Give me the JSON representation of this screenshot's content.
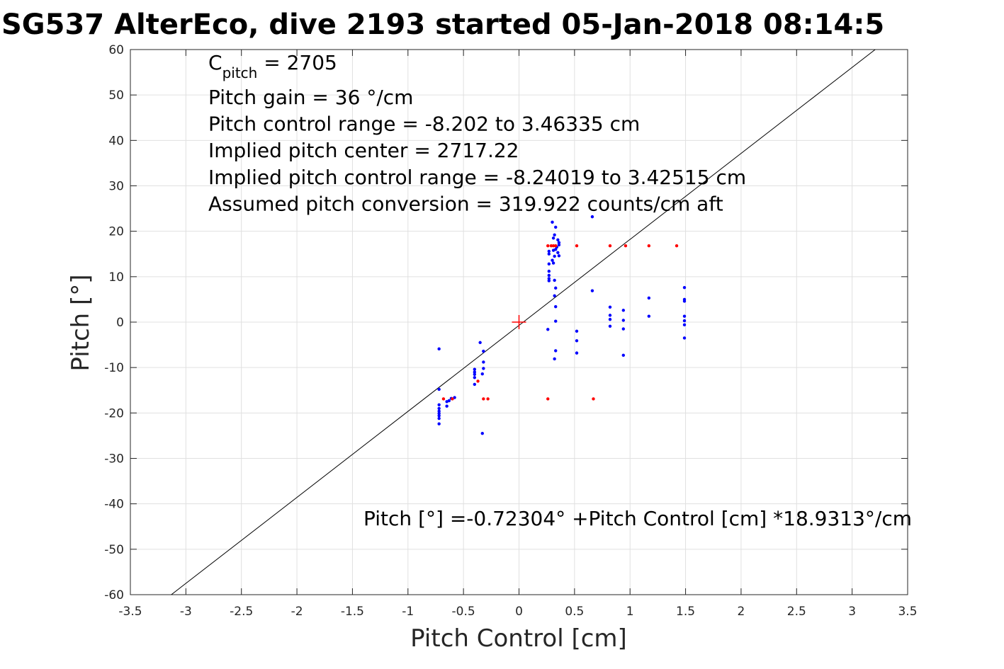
{
  "title": "SG537 AlterEco, dive 2193 started 05-Jan-2018 08:14:5",
  "colors": {
    "blue": "#0000ff",
    "red": "#ff0000",
    "fit_line": "#000000",
    "grid": "#e0e0e0"
  },
  "annotations": {
    "c_pitch_label": "C",
    "c_pitch_sub": "pitch",
    "c_pitch_value": " = 2705",
    "lines": [
      "Pitch gain = 36 °/cm",
      "Pitch control range = -8.202 to 3.46335 cm",
      "Implied pitch center = 2717.22",
      "Implied pitch control range = -8.24019 to 3.42515 cm",
      "Assumed pitch conversion = 319.922 counts/cm aft"
    ],
    "equation": "Pitch [°] =-0.72304° +Pitch Control [cm] *18.9313°/cm"
  },
  "chart_data": {
    "type": "scatter",
    "xlabel": "Pitch Control [cm]",
    "ylabel": "Pitch [°]",
    "xlim": [
      -3.5,
      3.5
    ],
    "ylim": [
      -60,
      60
    ],
    "xticks": [
      -3.5,
      -3,
      -2.5,
      -2,
      -1.5,
      -1,
      -0.5,
      0,
      0.5,
      1,
      1.5,
      2,
      2.5,
      3,
      3.5
    ],
    "xtick_labels": [
      "-3.5",
      "-3",
      "-2.5",
      "-2",
      "-1.5",
      "-1",
      "-0.5",
      "0",
      "0.5",
      "1",
      "1.5",
      "2",
      "2.5",
      "3",
      "3.5"
    ],
    "yticks": [
      -60,
      -50,
      -40,
      -30,
      -20,
      -10,
      0,
      10,
      20,
      30,
      40,
      50,
      60
    ],
    "ytick_labels": [
      "-60",
      "-50",
      "-40",
      "-30",
      "-20",
      "-10",
      "0",
      "10",
      "20",
      "30",
      "40",
      "50",
      "60"
    ],
    "grid": true,
    "fit": {
      "intercept": -0.72304,
      "slope": 18.9313
    },
    "center_marker": {
      "x": 0,
      "y": 0
    },
    "series": [
      {
        "color": "blue",
        "points": [
          [
            -0.72,
            -5.9
          ],
          [
            -0.72,
            -14.8
          ],
          [
            -0.72,
            -18.2
          ],
          [
            -0.72,
            -19.0
          ],
          [
            -0.72,
            -19.6
          ],
          [
            -0.72,
            -20.1
          ],
          [
            -0.72,
            -20.6
          ],
          [
            -0.72,
            -21.2
          ],
          [
            -0.72,
            -22.4
          ],
          [
            -0.65,
            -17.5
          ],
          [
            -0.65,
            -18.5
          ],
          [
            -0.63,
            -17.3
          ],
          [
            -0.61,
            -16.8
          ],
          [
            -0.58,
            -16.6
          ],
          [
            -0.4,
            -10.4
          ],
          [
            -0.4,
            -11.0
          ],
          [
            -0.4,
            -11.5
          ],
          [
            -0.4,
            -12.2
          ],
          [
            -0.4,
            -13.7
          ],
          [
            -0.35,
            -4.5
          ],
          [
            -0.32,
            -6.4
          ],
          [
            -0.32,
            -8.8
          ],
          [
            -0.32,
            -10.2
          ],
          [
            -0.33,
            -11.4
          ],
          [
            -0.33,
            -24.5
          ],
          [
            0.3,
            22.0
          ],
          [
            0.33,
            20.9
          ],
          [
            0.32,
            19.2
          ],
          [
            0.31,
            18.5
          ],
          [
            0.35,
            18.1
          ],
          [
            0.36,
            17.5
          ],
          [
            0.36,
            17.0
          ],
          [
            0.34,
            16.5
          ],
          [
            0.33,
            16.0
          ],
          [
            0.31,
            15.8
          ],
          [
            0.35,
            15.3
          ],
          [
            0.27,
            15.6
          ],
          [
            0.27,
            15.0
          ],
          [
            0.32,
            14.5
          ],
          [
            0.36,
            14.6
          ],
          [
            0.3,
            13.6
          ],
          [
            0.31,
            13.0
          ],
          [
            0.27,
            12.8
          ],
          [
            0.27,
            11.2
          ],
          [
            0.27,
            10.3
          ],
          [
            0.27,
            9.6
          ],
          [
            0.27,
            9.1
          ],
          [
            0.32,
            9.2
          ],
          [
            0.33,
            7.5
          ],
          [
            0.32,
            5.8
          ],
          [
            0.33,
            3.4
          ],
          [
            0.33,
            0.2
          ],
          [
            0.26,
            -1.6
          ],
          [
            0.33,
            -6.3
          ],
          [
            0.32,
            -8.1
          ],
          [
            0.52,
            -2.0
          ],
          [
            0.52,
            -4.1
          ],
          [
            0.52,
            -6.8
          ],
          [
            0.66,
            23.2
          ],
          [
            0.66,
            6.9
          ],
          [
            0.82,
            3.3
          ],
          [
            0.82,
            1.5
          ],
          [
            0.82,
            0.6
          ],
          [
            0.82,
            -0.9
          ],
          [
            0.94,
            2.6
          ],
          [
            0.94,
            0.4
          ],
          [
            0.94,
            -1.5
          ],
          [
            0.94,
            -7.3
          ],
          [
            1.17,
            5.3
          ],
          [
            1.17,
            1.3
          ],
          [
            1.49,
            7.6
          ],
          [
            1.49,
            5.0
          ],
          [
            1.49,
            4.6
          ],
          [
            1.49,
            1.3
          ],
          [
            1.49,
            0.3
          ],
          [
            1.49,
            -0.6
          ],
          [
            1.49,
            -3.5
          ]
        ]
      },
      {
        "color": "red",
        "points": [
          [
            -0.68,
            -16.9
          ],
          [
            -0.6,
            -16.9
          ],
          [
            -0.37,
            -13.0
          ],
          [
            -0.32,
            -16.9
          ],
          [
            -0.28,
            -16.9
          ],
          [
            0.26,
            -16.9
          ],
          [
            0.67,
            -16.9
          ],
          [
            0.26,
            16.8
          ],
          [
            0.29,
            16.8
          ],
          [
            0.31,
            16.8
          ],
          [
            0.33,
            16.8
          ],
          [
            0.52,
            16.8
          ],
          [
            0.82,
            16.8
          ],
          [
            0.96,
            16.8
          ],
          [
            1.17,
            16.8
          ],
          [
            1.42,
            16.8
          ]
        ]
      }
    ]
  }
}
